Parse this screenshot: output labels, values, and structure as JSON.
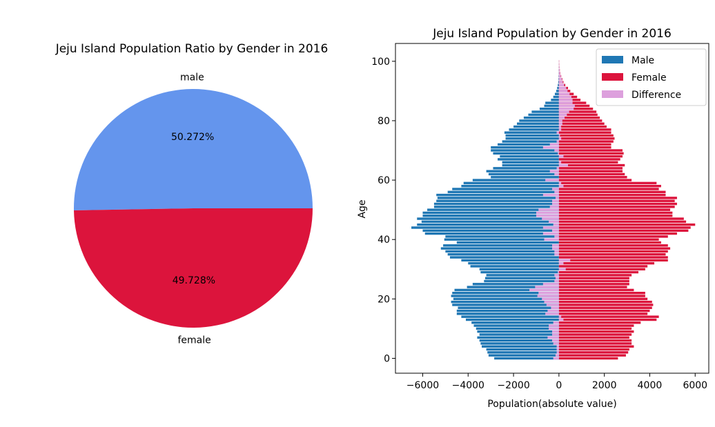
{
  "charts": [
    {
      "type": "pie",
      "title": "Jeju Island Population Ratio by Gender in 2016",
      "slices": [
        {
          "label": "male",
          "value": 50.272,
          "pct_label": "50.272%",
          "color": "#6495ED"
        },
        {
          "label": "female",
          "value": 49.728,
          "pct_label": "49.728%",
          "color": "#DC143C"
        }
      ]
    },
    {
      "type": "bar",
      "orientation": "horizontal",
      "title": "Jeju Island Population by Gender in 2016",
      "xlabel": "Population(absolute value)",
      "ylabel": "Age",
      "xlim": [
        -7200,
        6600
      ],
      "ylim": [
        -5,
        106
      ],
      "xticks": [
        -6000,
        -4000,
        -2000,
        0,
        2000,
        4000,
        6000
      ],
      "xtick_labels": [
        "−6000",
        "−4000",
        "−2000",
        "0",
        "2000",
        "4000",
        "6000"
      ],
      "yticks": [
        0,
        20,
        40,
        60,
        80,
        100
      ],
      "ytick_labels": [
        "0",
        "20",
        "40",
        "60",
        "80",
        "100"
      ],
      "legend": {
        "placement": "top-right",
        "entries": [
          "Male",
          "Female",
          "Difference"
        ]
      },
      "series": [
        {
          "name": "Male",
          "color": "#1f77b4",
          "ages_from": 0,
          "values": [
            -2850,
            -3100,
            -3150,
            -3200,
            -3400,
            -3450,
            -3500,
            -3600,
            -3500,
            -3600,
            -3650,
            -3750,
            -3850,
            -4100,
            -4300,
            -4500,
            -4500,
            -4450,
            -4700,
            -4750,
            -4650,
            -4750,
            -4700,
            -4600,
            -4050,
            -3800,
            -3300,
            -3250,
            -3200,
            -3450,
            -3500,
            -3900,
            -4000,
            -4300,
            -4800,
            -4900,
            -5000,
            -5200,
            -5100,
            -4500,
            -5050,
            -5000,
            -5900,
            -6000,
            -6500,
            -6250,
            -6050,
            -6250,
            -6000,
            -6000,
            -5800,
            -5500,
            -5500,
            -5400,
            -5350,
            -5400,
            -4900,
            -4700,
            -4300,
            -4200,
            -3800,
            -3000,
            -3100,
            -3200,
            -2900,
            -2500,
            -2500,
            -2700,
            -2600,
            -2900,
            -3000,
            -3000,
            -2700,
            -2500,
            -2350,
            -2350,
            -2400,
            -2200,
            -2000,
            -1850,
            -1750,
            -1550,
            -1350,
            -1200,
            -850,
            -650,
            -600,
            -350,
            -250,
            -180,
            -120,
            -80,
            -50,
            -30,
            -20,
            -15,
            -10,
            -8,
            -5,
            -3,
            -2
          ]
        },
        {
          "name": "Female",
          "color": "#DC143C",
          "ages_from": 0,
          "values": [
            2600,
            2950,
            3050,
            3100,
            3300,
            3200,
            3200,
            3100,
            3200,
            3300,
            3200,
            3300,
            3600,
            4300,
            4400,
            3900,
            4000,
            4100,
            4150,
            4100,
            3900,
            3800,
            3800,
            3300,
            3000,
            3100,
            3100,
            3100,
            3200,
            3500,
            3800,
            3900,
            4200,
            4800,
            4800,
            4700,
            4800,
            4900,
            4800,
            4500,
            4400,
            4800,
            5200,
            5700,
            5800,
            6000,
            5600,
            5500,
            5000,
            5000,
            4900,
            5100,
            5200,
            5100,
            5200,
            4700,
            4700,
            4400,
            4500,
            4300,
            3200,
            3000,
            2900,
            2800,
            2800,
            2900,
            2600,
            2700,
            2800,
            2850,
            2800,
            2300,
            2300,
            2400,
            2450,
            2400,
            2300,
            2300,
            2100,
            2000,
            1900,
            1800,
            1700,
            1650,
            1500,
            1350,
            1200,
            950,
            800,
            650,
            500,
            400,
            280,
            200,
            150,
            100,
            60,
            40,
            25,
            15,
            10
          ]
        },
        {
          "name": "Difference",
          "color": "#DDA0DD",
          "ages_from": 0,
          "values": [
            -250,
            -150,
            -100,
            -100,
            -100,
            -250,
            -300,
            -500,
            -300,
            -300,
            -450,
            -450,
            -250,
            200,
            100,
            -600,
            -500,
            -350,
            -550,
            -650,
            -750,
            -950,
            -900,
            -1300,
            -1050,
            -700,
            -200,
            -150,
            -200,
            -50,
            300,
            0,
            200,
            500,
            0,
            -200,
            -200,
            -300,
            -300,
            0,
            -650,
            -200,
            -700,
            -300,
            -700,
            -250,
            -450,
            -750,
            -1000,
            -1000,
            -900,
            -400,
            -300,
            -300,
            -150,
            -700,
            -200,
            -300,
            200,
            100,
            -600,
            0,
            -200,
            -400,
            -100,
            400,
            100,
            0,
            200,
            -50,
            -200,
            -700,
            -400,
            -100,
            100,
            50,
            -100,
            100,
            100,
            150,
            150,
            250,
            350,
            450,
            650,
            700,
            600,
            600,
            550,
            470,
            380,
            320,
            230,
            170,
            130,
            85,
            50,
            32,
            20,
            12,
            8
          ]
        }
      ]
    }
  ]
}
